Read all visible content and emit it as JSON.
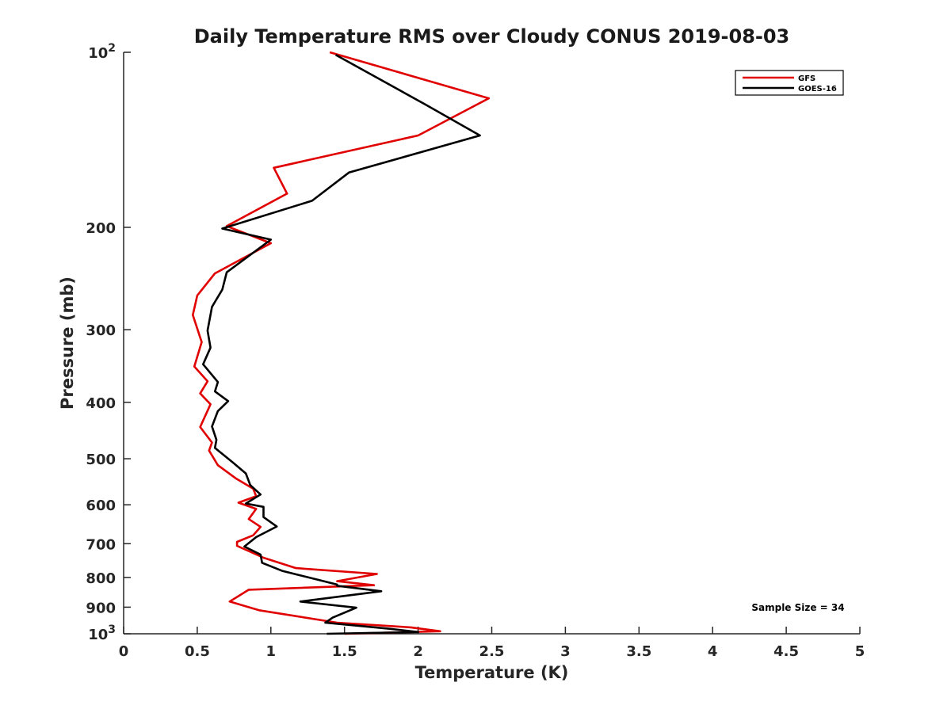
{
  "chart_data": {
    "type": "line",
    "title": "Daily Temperature RMS over Cloudy CONUS 2019-08-03",
    "xlabel": "Temperature (K)",
    "ylabel": "Pressure (mb)",
    "xlim": [
      0,
      5
    ],
    "ylim": [
      100,
      1000
    ],
    "y_scale": "log",
    "y_reversed": true,
    "grid": false,
    "legend_position": "top-right",
    "x_ticks": [
      "0",
      "0.5",
      "1",
      "1.5",
      "2",
      "2.5",
      "3",
      "3.5",
      "4",
      "4.5",
      "5"
    ],
    "y_ticks": [
      {
        "value": 100,
        "base": "10",
        "exp": "2"
      },
      {
        "value": 200,
        "label": "200"
      },
      {
        "value": 300,
        "label": "300"
      },
      {
        "value": 400,
        "label": "400"
      },
      {
        "value": 500,
        "label": "500"
      },
      {
        "value": 600,
        "label": "600"
      },
      {
        "value": 700,
        "label": "700"
      },
      {
        "value": 800,
        "label": "800"
      },
      {
        "value": 900,
        "label": "900"
      },
      {
        "value": 1000,
        "base": "10",
        "exp": "3"
      }
    ],
    "series": [
      {
        "name": "GFS",
        "color": "#e00000",
        "points": [
          [
            1.4,
            100
          ],
          [
            2.48,
            120
          ],
          [
            2.0,
            139
          ],
          [
            1.02,
            158
          ],
          [
            1.11,
            175
          ],
          [
            0.7,
            199
          ],
          [
            1.0,
            213
          ],
          [
            0.62,
            240
          ],
          [
            0.5,
            262
          ],
          [
            0.47,
            283
          ],
          [
            0.53,
            315
          ],
          [
            0.48,
            347
          ],
          [
            0.57,
            368
          ],
          [
            0.52,
            386
          ],
          [
            0.59,
            403
          ],
          [
            0.52,
            441
          ],
          [
            0.6,
            469
          ],
          [
            0.58,
            484
          ],
          [
            0.64,
            513
          ],
          [
            0.76,
            540
          ],
          [
            0.88,
            563
          ],
          [
            0.9,
            580
          ],
          [
            0.78,
            595
          ],
          [
            0.9,
            610
          ],
          [
            0.85,
            635
          ],
          [
            0.93,
            655
          ],
          [
            0.88,
            677
          ],
          [
            0.77,
            695
          ],
          [
            0.77,
            706
          ],
          [
            0.95,
            740
          ],
          [
            1.17,
            771
          ],
          [
            1.72,
            789
          ],
          [
            1.45,
            812
          ],
          [
            1.7,
            825
          ],
          [
            0.85,
            840
          ],
          [
            0.72,
            880
          ],
          [
            0.92,
            911
          ],
          [
            1.45,
            957
          ],
          [
            1.95,
            975
          ],
          [
            2.15,
            990
          ],
          [
            1.5,
            1000
          ]
        ]
      },
      {
        "name": "GOES-16",
        "color": "#000000",
        "points": [
          [
            1.44,
            101
          ],
          [
            2.05,
            123
          ],
          [
            2.42,
            139
          ],
          [
            1.53,
            161
          ],
          [
            1.28,
            180
          ],
          [
            0.67,
            201
          ],
          [
            1.0,
            210
          ],
          [
            0.7,
            239
          ],
          [
            0.67,
            256
          ],
          [
            0.6,
            274
          ],
          [
            0.57,
            301
          ],
          [
            0.59,
            322
          ],
          [
            0.54,
            344
          ],
          [
            0.64,
            369
          ],
          [
            0.62,
            383
          ],
          [
            0.71,
            398
          ],
          [
            0.64,
            414
          ],
          [
            0.6,
            440
          ],
          [
            0.63,
            464
          ],
          [
            0.62,
            479
          ],
          [
            0.74,
            507
          ],
          [
            0.83,
            530
          ],
          [
            0.86,
            555
          ],
          [
            0.93,
            576
          ],
          [
            0.83,
            597
          ],
          [
            0.95,
            605
          ],
          [
            0.95,
            630
          ],
          [
            1.04,
            654
          ],
          [
            0.9,
            682
          ],
          [
            0.82,
            708
          ],
          [
            0.93,
            731
          ],
          [
            0.94,
            755
          ],
          [
            1.08,
            780
          ],
          [
            1.3,
            805
          ],
          [
            1.45,
            823
          ],
          [
            1.45,
            827
          ],
          [
            1.75,
            845
          ],
          [
            1.2,
            880
          ],
          [
            1.58,
            902
          ],
          [
            1.42,
            938
          ],
          [
            1.37,
            957
          ],
          [
            1.8,
            980
          ],
          [
            2.0,
            993
          ],
          [
            1.38,
            1000
          ]
        ]
      }
    ],
    "annotations": [
      {
        "text": "Sample Size = 34"
      }
    ]
  }
}
